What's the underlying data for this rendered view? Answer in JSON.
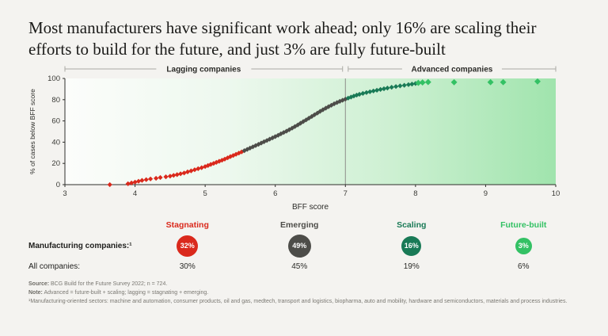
{
  "page": {
    "title": "Most manufacturers have significant work ahead; only 16% are scaling their efforts to build for the future, and just 3% are fully future-built"
  },
  "chart_data": {
    "type": "scatter",
    "title": "",
    "xlabel": "BFF score",
    "ylabel": "% of cases below BFF score",
    "xlim": [
      3,
      10
    ],
    "ylim": [
      0,
      100
    ],
    "xticks": [
      3,
      4,
      5,
      6,
      7,
      8,
      9,
      10
    ],
    "yticks": [
      0,
      20,
      40,
      60,
      80,
      100
    ],
    "grid": false,
    "separator_x": 7,
    "brackets": [
      {
        "label": "Lagging companies",
        "from": 3,
        "to": 6.96
      },
      {
        "label": "Advanced companies",
        "from": 7.04,
        "to": 10
      }
    ],
    "plot_gradient": [
      "#fcfdfb",
      "#edf8ee",
      "#cdf0d2",
      "#a0e4ad"
    ],
    "series": [
      {
        "name": "Stagnating",
        "color": "#da291c",
        "marker": "diamond",
        "size": 4.4,
        "points": [
          [
            3.64,
            0
          ],
          [
            3.9,
            0.8
          ],
          [
            3.95,
            1.6
          ],
          [
            4.0,
            2.4
          ],
          [
            4.05,
            3.2
          ],
          [
            4.1,
            4
          ],
          [
            4.16,
            4.7
          ],
          [
            4.22,
            5.4
          ],
          [
            4.3,
            6
          ],
          [
            4.36,
            6.7
          ],
          [
            4.44,
            7.4
          ],
          [
            4.5,
            8
          ],
          [
            4.55,
            8.7
          ],
          [
            4.6,
            9.4
          ],
          [
            4.65,
            10.2
          ],
          [
            4.7,
            11
          ],
          [
            4.75,
            12
          ],
          [
            4.8,
            13
          ],
          [
            4.85,
            14
          ],
          [
            4.9,
            15
          ],
          [
            4.95,
            16
          ],
          [
            5.0,
            17
          ],
          [
            5.04,
            18
          ],
          [
            5.08,
            19
          ],
          [
            5.12,
            20
          ],
          [
            5.16,
            21
          ],
          [
            5.2,
            22
          ],
          [
            5.24,
            23
          ],
          [
            5.28,
            24
          ],
          [
            5.32,
            25.2
          ],
          [
            5.36,
            26.4
          ],
          [
            5.4,
            27.5
          ],
          [
            5.44,
            28.6
          ],
          [
            5.48,
            29.7
          ],
          [
            5.52,
            30.8
          ]
        ]
      },
      {
        "name": "Emerging",
        "color": "#4d4d49",
        "marker": "diamond",
        "size": 4.4,
        "points": [
          [
            5.56,
            32
          ],
          [
            5.6,
            33.2
          ],
          [
            5.64,
            34.4
          ],
          [
            5.68,
            35.6
          ],
          [
            5.72,
            36.8
          ],
          [
            5.76,
            38
          ],
          [
            5.8,
            39.2
          ],
          [
            5.84,
            40.4
          ],
          [
            5.88,
            41.6
          ],
          [
            5.92,
            42.8
          ],
          [
            5.96,
            44
          ],
          [
            6.0,
            45.2
          ],
          [
            6.04,
            46.5
          ],
          [
            6.08,
            47.8
          ],
          [
            6.12,
            49.1
          ],
          [
            6.16,
            50.4
          ],
          [
            6.2,
            51.8
          ],
          [
            6.24,
            53.2
          ],
          [
            6.28,
            54.7
          ],
          [
            6.32,
            56.2
          ],
          [
            6.36,
            57.8
          ],
          [
            6.4,
            59.4
          ],
          [
            6.44,
            61
          ],
          [
            6.48,
            62.6
          ],
          [
            6.52,
            64.2
          ],
          [
            6.56,
            65.8
          ],
          [
            6.6,
            67.4
          ],
          [
            6.64,
            69
          ],
          [
            6.68,
            70.5
          ],
          [
            6.72,
            72
          ],
          [
            6.76,
            73.4
          ],
          [
            6.8,
            74.8
          ],
          [
            6.84,
            76.1
          ],
          [
            6.88,
            77.3
          ],
          [
            6.92,
            78.4
          ],
          [
            6.96,
            79.5
          ],
          [
            7.0,
            80.5
          ]
        ]
      },
      {
        "name": "Scaling",
        "color": "#197a56",
        "marker": "diamond",
        "size": 4.4,
        "points": [
          [
            7.04,
            81.5
          ],
          [
            7.08,
            82.5
          ],
          [
            7.12,
            83.4
          ],
          [
            7.16,
            84.3
          ],
          [
            7.2,
            85.1
          ],
          [
            7.25,
            85.9
          ],
          [
            7.3,
            86.7
          ],
          [
            7.35,
            87.5
          ],
          [
            7.4,
            88.2
          ],
          [
            7.45,
            88.9
          ],
          [
            7.5,
            89.6
          ],
          [
            7.55,
            90.3
          ],
          [
            7.6,
            91
          ],
          [
            7.66,
            91.7
          ],
          [
            7.72,
            92.4
          ],
          [
            7.78,
            93
          ],
          [
            7.84,
            93.6
          ],
          [
            7.9,
            94.2
          ],
          [
            7.95,
            94.7
          ],
          [
            8.0,
            95.2
          ]
        ]
      },
      {
        "name": "Future-built",
        "color": "#33c164",
        "marker": "diamond",
        "size": 5.6,
        "points": [
          [
            8.04,
            95.8
          ],
          [
            8.1,
            96.2
          ],
          [
            8.18,
            96.6
          ],
          [
            8.55,
            96.4
          ],
          [
            9.07,
            96.5
          ],
          [
            9.25,
            96.5
          ],
          [
            9.74,
            97.2
          ]
        ]
      }
    ]
  },
  "legend": {
    "row_labels": {
      "manufacturing": "Manufacturing companies:¹",
      "all": "All companies:"
    },
    "categories": [
      {
        "name": "Stagnating",
        "color": "#da291c",
        "manufacturing": "32%",
        "all": "30%",
        "circle_size": 27
      },
      {
        "name": "Emerging",
        "color": "#4d4d49",
        "manufacturing": "49%",
        "all": "45%",
        "circle_size": 29
      },
      {
        "name": "Scaling",
        "color": "#197a56",
        "manufacturing": "16%",
        "all": "19%",
        "circle_size": 25
      },
      {
        "name": "Future-built",
        "color": "#33c164",
        "manufacturing": "3%",
        "all": "6%",
        "circle_size": 21
      }
    ]
  },
  "footnotes": [
    {
      "label": "Source:",
      "text": " BCG Build for the Future Survey 2022; n = 724."
    },
    {
      "label": "Note:",
      "text": " Advanced = future-built + scaling; lagging = stagnating + emerging."
    },
    {
      "label": "",
      "text": "¹Manufacturing-oriented sectors: machine and automation, consumer products, oil and gas, medtech, transport and logistics, biopharma, auto and mobility, hardware and semiconductors, materials and process industries."
    }
  ]
}
